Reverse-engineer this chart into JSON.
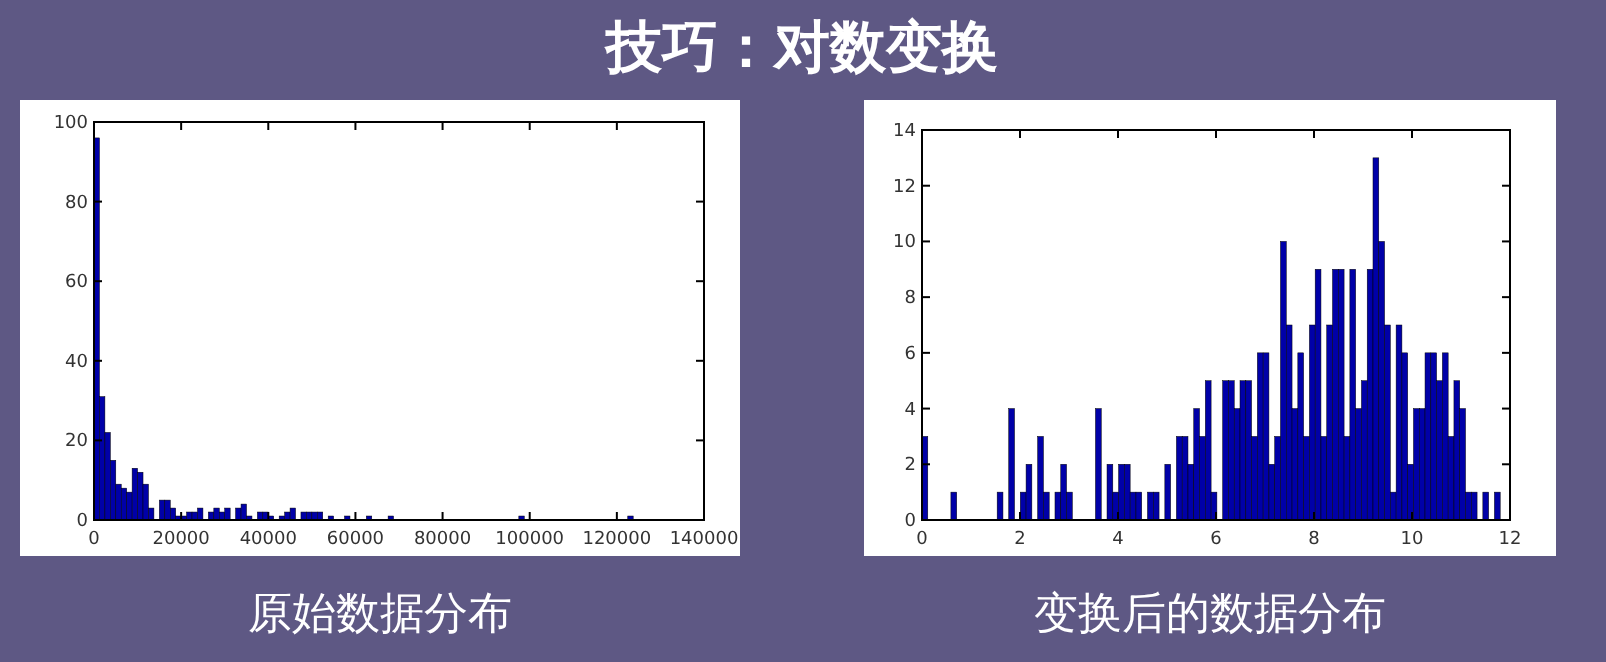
{
  "chart_data": [
    {
      "type": "histogram",
      "title": "技巧：对数变换",
      "annotations": [
        "原始数据分布"
      ],
      "color": "#0000a8",
      "bins": [
        0,
        1250,
        2500,
        3750,
        5000,
        6250,
        7500,
        8750,
        10000,
        11250,
        12500,
        13750,
        15000,
        16250,
        17500,
        18750,
        20000,
        21250,
        22500,
        23750,
        25000,
        26250,
        27500,
        28750,
        30000,
        31250,
        32500,
        33750,
        35000,
        36250,
        37500,
        38750,
        40000,
        41250,
        42500,
        43750,
        45000,
        46250,
        47500,
        48750,
        50000,
        51250,
        52500,
        53750,
        55000,
        56250,
        57500,
        58750,
        60000,
        61250,
        62500,
        63750,
        65000,
        66250,
        67500,
        68750,
        70000,
        71250,
        72500,
        73750,
        75000,
        76250,
        77500,
        78750,
        80000,
        81250,
        82500,
        83750,
        85000,
        86250,
        87500,
        88750,
        90000,
        91250,
        92500,
        93750,
        95000,
        96250,
        97500,
        98750,
        100000,
        101250,
        102500,
        103750,
        105000,
        106250,
        107500,
        108750,
        110000,
        111250,
        112500,
        113750,
        115000,
        116250,
        117500,
        118750,
        120000,
        121250,
        122500,
        123750,
        125000
      ],
      "values": [
        96,
        31,
        22,
        15,
        9,
        8,
        7,
        13,
        12,
        9,
        3,
        0,
        5,
        5,
        3,
        1,
        1,
        2,
        2,
        3,
        0,
        2,
        3,
        2,
        3,
        0,
        3,
        4,
        1,
        0,
        2,
        2,
        1,
        0,
        1,
        2,
        3,
        0,
        2,
        2,
        2,
        2,
        0,
        1,
        0,
        0,
        1,
        0,
        0,
        0,
        1,
        0,
        0,
        0,
        1,
        0,
        0,
        0,
        0,
        0,
        0,
        0,
        0,
        0,
        0,
        0,
        0,
        0,
        0,
        0,
        0,
        0,
        0,
        0,
        0,
        0,
        0,
        0,
        1,
        0,
        0,
        0,
        0,
        0,
        0,
        0,
        0,
        0,
        0,
        0,
        0,
        0,
        0,
        0,
        0,
        0,
        0,
        0,
        1,
        0
      ],
      "xlim": [
        0,
        140000
      ],
      "ylim": [
        0,
        100
      ],
      "xticks": [
        0,
        20000,
        40000,
        60000,
        80000,
        100000,
        120000,
        140000
      ],
      "yticks": [
        0,
        20,
        40,
        60,
        80,
        100
      ]
    },
    {
      "type": "histogram",
      "annotations": [
        "变换后的数据分布"
      ],
      "color": "#0000a8",
      "bins": [
        0,
        0.118,
        0.236,
        0.354,
        0.472,
        0.59,
        0.708,
        0.826,
        0.944,
        1.062,
        1.18,
        1.298,
        1.416,
        1.534,
        1.652,
        1.77,
        1.888,
        2.006,
        2.124,
        2.242,
        2.36,
        2.478,
        2.596,
        2.714,
        2.832,
        2.95,
        3.068,
        3.186,
        3.304,
        3.422,
        3.54,
        3.658,
        3.776,
        3.894,
        4.012,
        4.13,
        4.248,
        4.366,
        4.484,
        4.602,
        4.72,
        4.838,
        4.956,
        5.074,
        5.192,
        5.31,
        5.428,
        5.546,
        5.664,
        5.782,
        5.9,
        6.018,
        6.136,
        6.254,
        6.372,
        6.49,
        6.608,
        6.726,
        6.844,
        6.962,
        7.08,
        7.198,
        7.316,
        7.434,
        7.552,
        7.67,
        7.788,
        7.906,
        8.024,
        8.142,
        8.26,
        8.378,
        8.496,
        8.614,
        8.732,
        8.85,
        8.968,
        9.086,
        9.204,
        9.322,
        9.44,
        9.558,
        9.676,
        9.794,
        9.912,
        10.03,
        10.148,
        10.266,
        10.384,
        10.502,
        10.62,
        10.738,
        10.856,
        10.974,
        11.092,
        11.21,
        11.328,
        11.446,
        11.564,
        11.682,
        11.8
      ],
      "values": [
        3,
        0,
        0,
        0,
        0,
        1,
        0,
        0,
        0,
        0,
        0,
        0,
        0,
        1,
        0,
        4,
        0,
        1,
        2,
        0,
        3,
        1,
        0,
        1,
        2,
        1,
        0,
        0,
        0,
        0,
        4,
        0,
        2,
        1,
        2,
        2,
        1,
        1,
        0,
        1,
        1,
        0,
        2,
        0,
        3,
        3,
        2,
        4,
        3,
        5,
        1,
        0,
        5,
        5,
        4,
        5,
        5,
        3,
        6,
        6,
        2,
        3,
        10,
        7,
        4,
        6,
        3,
        7,
        9,
        3,
        7,
        9,
        9,
        3,
        9,
        4,
        5,
        9,
        13,
        10,
        7,
        1,
        7,
        6,
        2,
        4,
        4,
        6,
        6,
        5,
        6,
        3,
        5,
        4,
        1,
        1,
        0,
        1,
        0,
        1
      ],
      "xlim": [
        0,
        12
      ],
      "ylim": [
        0,
        14
      ],
      "xticks": [
        0,
        2,
        4,
        6,
        8,
        10,
        12
      ],
      "yticks": [
        0,
        2,
        4,
        6,
        8,
        10,
        12,
        14
      ]
    }
  ]
}
